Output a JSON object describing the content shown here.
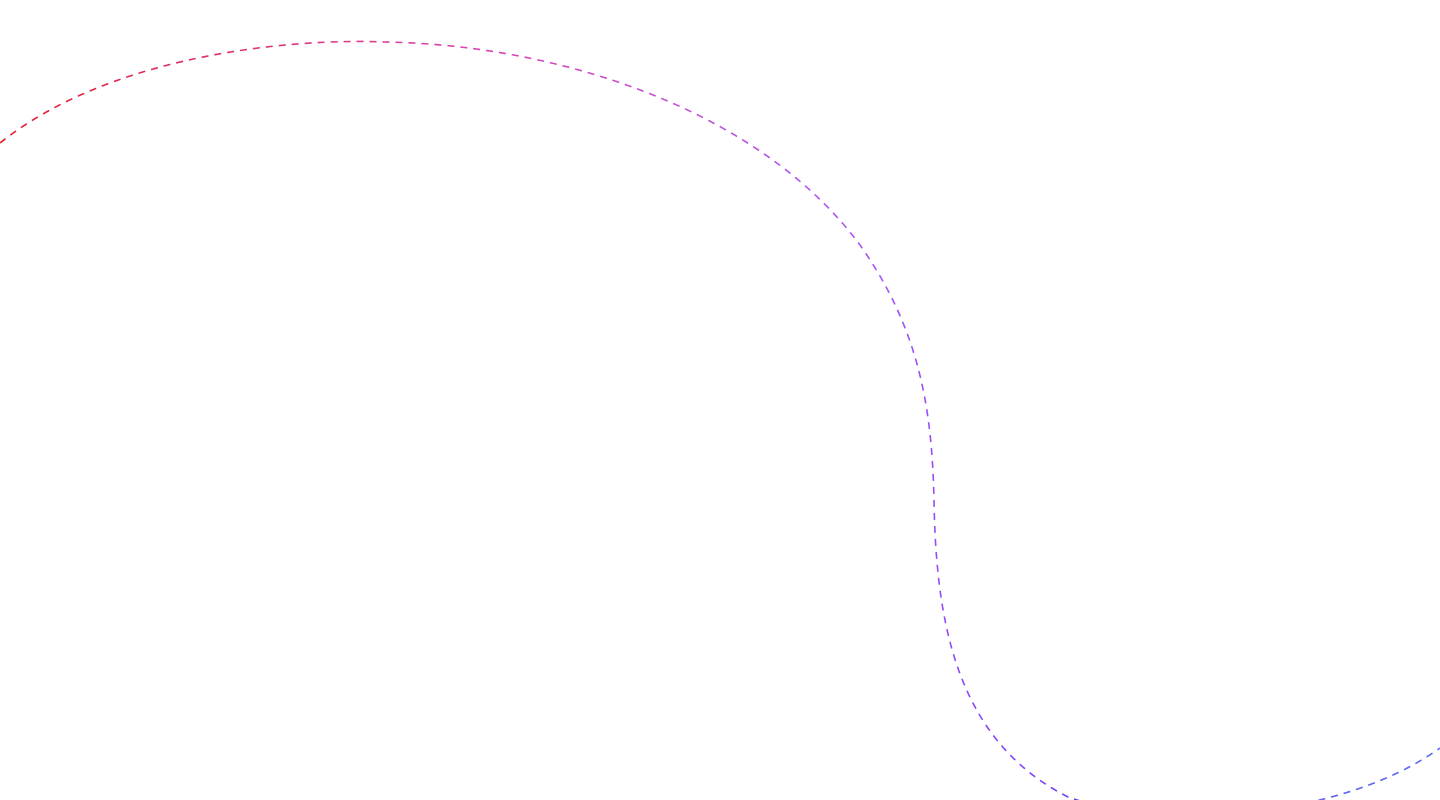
{
  "background": "#ffffff",
  "curve": {
    "style": "dashed",
    "gradient_colors": [
      "#e11d2e",
      "#d946b8",
      "#a855f7",
      "#6d3df5",
      "#5b6cf0"
    ]
  }
}
